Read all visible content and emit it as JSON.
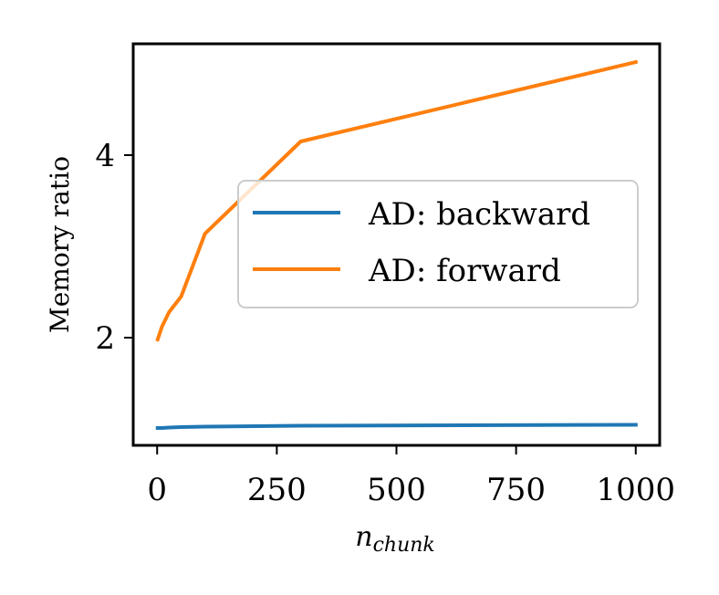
{
  "chart_data": {
    "type": "line",
    "xlabel": {
      "base": "n",
      "subscript": "chunk"
    },
    "ylabel": "Memory ratio",
    "xlim": [
      -50,
      1050
    ],
    "ylim": [
      0.82,
      5.22
    ],
    "xticks": [
      0,
      250,
      500,
      750,
      1000
    ],
    "xtick_labels": [
      "0",
      "250",
      "500",
      "750",
      "1000"
    ],
    "yticks": [
      2,
      4
    ],
    "ytick_labels": [
      "2",
      "4"
    ],
    "grid": false,
    "legend": {
      "position": "center-right"
    },
    "series": [
      {
        "name": "AD: backward",
        "color": "#1f77b4",
        "x": [
          1,
          10,
          25,
          50,
          100,
          300,
          1000
        ],
        "y": [
          1.01,
          1.01,
          1.015,
          1.02,
          1.025,
          1.035,
          1.045
        ]
      },
      {
        "name": "AD: forward",
        "color": "#ff7f0e",
        "x": [
          1,
          10,
          25,
          50,
          100,
          300,
          1000
        ],
        "y": [
          1.98,
          2.12,
          2.28,
          2.45,
          3.14,
          4.15,
          5.02
        ]
      }
    ]
  }
}
